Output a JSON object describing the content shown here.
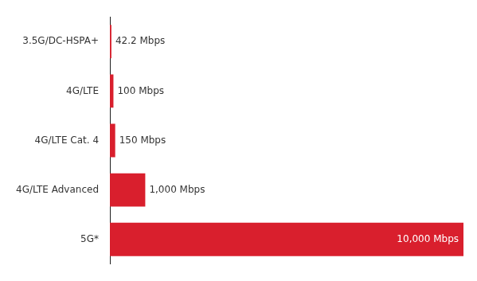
{
  "chart_data": {
    "type": "bar",
    "orientation": "horizontal",
    "categories": [
      "3.5G/DC-HSPA+",
      "4G/LTE",
      "4G/LTE Cat. 4",
      "4G/LTE Advanced",
      "5G*"
    ],
    "values": [
      42.2,
      100,
      150,
      1000,
      10000
    ],
    "value_labels": [
      "42.2 Mbps",
      "100 Mbps",
      "150 Mbps",
      "1,000 Mbps",
      "10,000 Mbps"
    ],
    "color": "#d91f2d",
    "xlim": [
      0,
      10000
    ],
    "data_labels": true,
    "tick_labels": "y",
    "grid": false
  }
}
